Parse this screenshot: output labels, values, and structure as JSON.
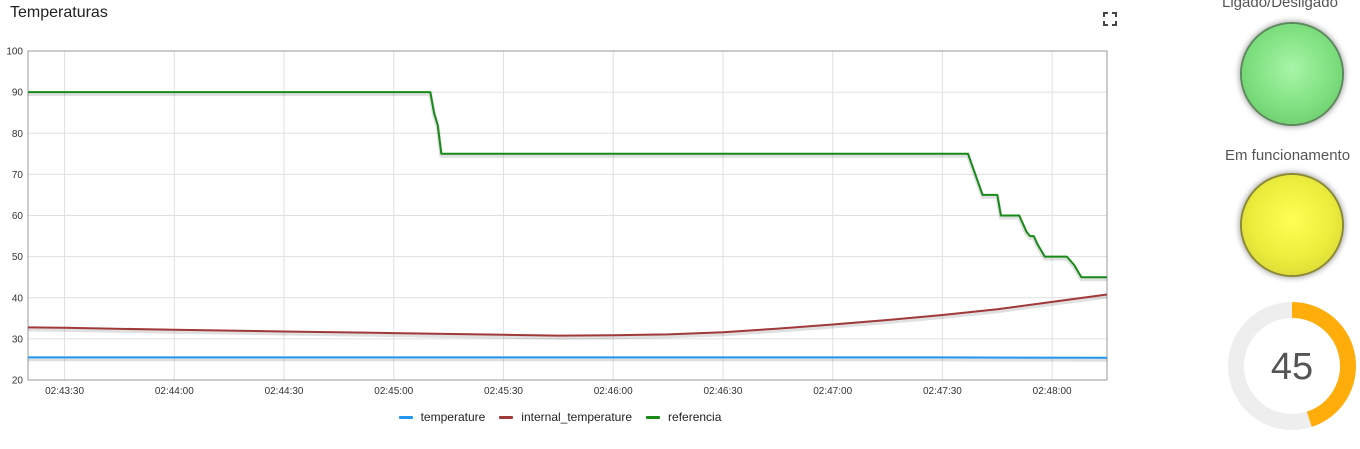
{
  "chart": {
    "title": "Temperaturas"
  },
  "chart_data": {
    "type": "line",
    "title": "Temperaturas",
    "xlabel": "",
    "ylabel": "",
    "ylim": [
      20,
      100
    ],
    "yticks": [
      20,
      30,
      40,
      50,
      60,
      70,
      80,
      90,
      100
    ],
    "xlim": [
      "02:43:20",
      "02:48:15"
    ],
    "xticks": [
      "02:43:30",
      "02:44:00",
      "02:44:30",
      "02:45:00",
      "02:45:30",
      "02:46:00",
      "02:46:30",
      "02:47:00",
      "02:47:30",
      "02:48:00"
    ],
    "grid": true,
    "legend_position": "bottom",
    "series": [
      {
        "name": "temperature",
        "color": "#2196f3",
        "points": [
          [
            "02:43:20",
            25.5
          ],
          [
            "02:44:30",
            25.5
          ],
          [
            "02:45:30",
            25.5
          ],
          [
            "02:46:30",
            25.5
          ],
          [
            "02:47:30",
            25.5
          ],
          [
            "02:48:15",
            25.4
          ]
        ]
      },
      {
        "name": "internal_temperature",
        "color": "#a03a3a",
        "points": [
          [
            "02:43:20",
            32.8
          ],
          [
            "02:43:30",
            32.7
          ],
          [
            "02:44:00",
            32.2
          ],
          [
            "02:44:30",
            31.8
          ],
          [
            "02:45:00",
            31.4
          ],
          [
            "02:45:30",
            31.0
          ],
          [
            "02:45:45",
            30.8
          ],
          [
            "02:46:00",
            30.9
          ],
          [
            "02:46:15",
            31.1
          ],
          [
            "02:46:30",
            31.6
          ],
          [
            "02:46:45",
            32.5
          ],
          [
            "02:47:00",
            33.5
          ],
          [
            "02:47:15",
            34.6
          ],
          [
            "02:47:30",
            35.8
          ],
          [
            "02:47:45",
            37.2
          ],
          [
            "02:48:00",
            39.0
          ],
          [
            "02:48:15",
            40.8
          ]
        ]
      },
      {
        "name": "referencia",
        "color": "#178a17",
        "points": [
          [
            "02:43:20",
            90
          ],
          [
            "02:45:10",
            90
          ],
          [
            "02:45:11",
            85
          ],
          [
            "02:45:12",
            82
          ],
          [
            "02:45:13",
            75
          ],
          [
            "02:47:37",
            75
          ],
          [
            "02:47:41",
            65
          ],
          [
            "02:47:45",
            65
          ],
          [
            "02:47:46",
            60
          ],
          [
            "02:47:51",
            60
          ],
          [
            "02:47:52",
            58
          ],
          [
            "02:47:53",
            56
          ],
          [
            "02:47:54",
            55
          ],
          [
            "02:47:55",
            55
          ],
          [
            "02:47:56",
            53
          ],
          [
            "02:47:58",
            50
          ],
          [
            "02:48:04",
            50
          ],
          [
            "02:48:06",
            48
          ],
          [
            "02:48:08",
            45
          ],
          [
            "02:48:15",
            45
          ]
        ]
      }
    ]
  },
  "panels": {
    "lamp1": {
      "title": "Ligado/Desligado",
      "color": "#7fe07f"
    },
    "lamp2": {
      "title": "Em funcionamento",
      "color": "#e9e93a"
    },
    "gauge": {
      "value": 45,
      "min": 0,
      "max": 100,
      "color": "#ffad0a",
      "track_color": "#eeeeee"
    }
  }
}
